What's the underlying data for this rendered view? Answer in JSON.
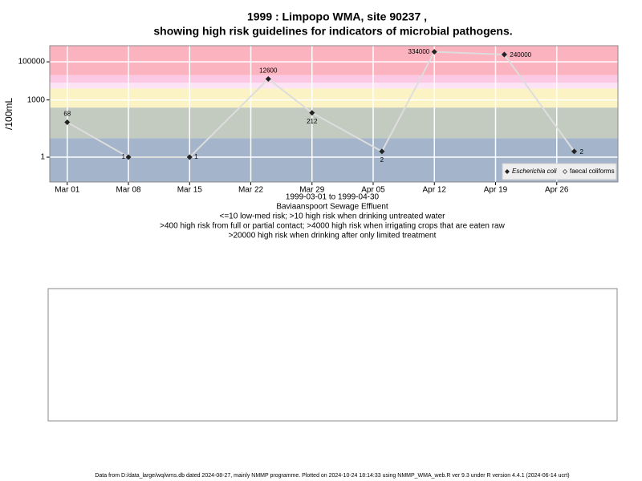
{
  "chart_data": {
    "type": "line",
    "title": "1999 : Limpopo WMA, site 90237 ,",
    "subtitle": "showing high risk guidelines for indicators of microbial pathogens.",
    "y_label": "/100mL",
    "x_label": "1999-03-01 to 1999-04-30",
    "site_name": "Baviaanspoort Sewage Effluent",
    "notes": [
      "<=10 low-med risk; >10 high risk when drinking untreated water",
      ">400 high risk from full or partial contact; >4000 high risk when irrigating crops that are eaten raw",
      ">20000 high risk when drinking after only limited treatment"
    ],
    "footer": "Data from D:/data_large/wq/wms.db dated 2024-08-27, mainly NMMP programme. Plotted on 2024-10-24 18:14:33 using NMMP_WMA_web.R ver 9.3 under R version 4.4.1 (2024-06-14 ucrt)",
    "log_scale": true,
    "x": [
      "1999-03-01",
      "1999-03-08",
      "1999-03-15",
      "1999-03-24",
      "1999-03-29",
      "1999-04-06",
      "1999-04-12",
      "1999-04-20",
      "1999-04-28"
    ],
    "series": [
      {
        "name": "Escherichia coli",
        "color": "#222222",
        "line_color": "#dddddd",
        "values": [
          68,
          1,
          1,
          12600,
          212,
          2,
          334000,
          240000,
          2
        ]
      },
      {
        "name": "faecal coliforms",
        "color": "#222222",
        "line_color": "#dddddd",
        "values": [
          null,
          null,
          null,
          null,
          null,
          null,
          null,
          null,
          null
        ]
      }
    ],
    "bands": [
      {
        "range": [
          0.05,
          10
        ],
        "color": "#a3b4cb"
      },
      {
        "range": [
          10,
          400
        ],
        "color": "#c3cbc1"
      },
      {
        "range": [
          400,
          4000
        ],
        "color": "#fbf3c4"
      },
      {
        "range": [
          4000,
          8000
        ],
        "color": "#fde3f6"
      },
      {
        "range": [
          8000,
          20000
        ],
        "color": "#fbc9e3"
      },
      {
        "range": [
          20000,
          700000
        ],
        "color": "#fbb3c0"
      }
    ],
    "xlim": [
      "1999-02-27",
      "1999-05-03"
    ],
    "ylim": [
      0.05,
      700000
    ],
    "xticks": [
      {
        "value": "1999-03-01",
        "label": "Mar 01"
      },
      {
        "value": "1999-03-08",
        "label": "Mar 08"
      },
      {
        "value": "1999-03-15",
        "label": "Mar 15"
      },
      {
        "value": "1999-03-22",
        "label": "Mar 22"
      },
      {
        "value": "1999-03-29",
        "label": "Mar 29"
      },
      {
        "value": "1999-04-05",
        "label": "Apr 05"
      },
      {
        "value": "1999-04-12",
        "label": "Apr 12"
      },
      {
        "value": "1999-04-19",
        "label": "Apr 19"
      },
      {
        "value": "1999-04-26",
        "label": "Apr 26"
      }
    ],
    "yticks": [
      1,
      1000,
      100000
    ],
    "grid": true,
    "legend_position": "bottom-right"
  }
}
